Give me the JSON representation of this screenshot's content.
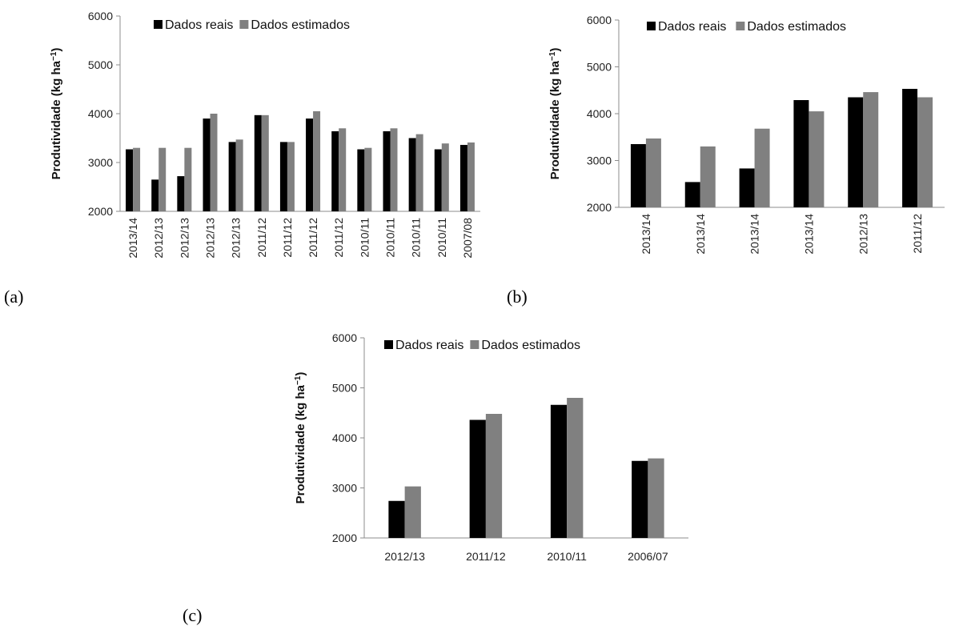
{
  "colors": {
    "real": "#000000",
    "estimated": "#808080",
    "axis": "#8c8c8c"
  },
  "chart_data": [
    {
      "type": "bar",
      "panel_label": "(a)",
      "ylabel": "Produtividade (kg ha",
      "ylabel_sup": "−1",
      "ylabel_close": ")",
      "ylim": [
        2000,
        6000
      ],
      "yticks": [
        2000,
        3000,
        4000,
        5000,
        6000
      ],
      "legend_position": "top-left",
      "grid": false,
      "categories": [
        "2013/14",
        "2012/13",
        "2012/13",
        "2012/13",
        "2012/13",
        "2011/12",
        "2011/12",
        "2011/12",
        "2011/12",
        "2010/11",
        "2010/11",
        "2010/11",
        "2010/11",
        "2007/08"
      ],
      "series": [
        {
          "name": "Dados reais",
          "values": [
            3270,
            2650,
            2720,
            3900,
            3420,
            3970,
            3420,
            3900,
            3640,
            3270,
            3640,
            3500,
            3270,
            3360
          ]
        },
        {
          "name": "Dados estimados",
          "values": [
            3300,
            3300,
            3300,
            4000,
            3470,
            3970,
            3420,
            4050,
            3700,
            3300,
            3700,
            3580,
            3390,
            3410
          ]
        }
      ]
    },
    {
      "type": "bar",
      "panel_label": "(b)",
      "ylabel": "Produtividade (kg ha",
      "ylabel_sup": "−1",
      "ylabel_close": ")",
      "ylim": [
        2000,
        6000
      ],
      "yticks": [
        2000,
        3000,
        4000,
        5000,
        6000
      ],
      "legend_position": "top-left",
      "grid": false,
      "categories": [
        "2013/14",
        "2013/14",
        "2013/14",
        "2013/14",
        "2012/13",
        "2011/12"
      ],
      "series": [
        {
          "name": "Dados reais",
          "values": [
            3350,
            2540,
            2830,
            4290,
            4350,
            4530
          ]
        },
        {
          "name": "Dados estimados",
          "values": [
            3470,
            3300,
            3680,
            4050,
            4460,
            4350
          ]
        }
      ]
    },
    {
      "type": "bar",
      "panel_label": "(c)",
      "ylabel": "Produtividade (kg ha",
      "ylabel_sup": "−1",
      "ylabel_close": ")",
      "ylim": [
        2000,
        6000
      ],
      "yticks": [
        2000,
        3000,
        4000,
        5000,
        6000
      ],
      "legend_position": "top-left",
      "grid": false,
      "categories": [
        "2012/13",
        "2011/12",
        "2010/11",
        "2006/07"
      ],
      "series": [
        {
          "name": "Dados reais",
          "values": [
            2740,
            4360,
            4660,
            3540
          ]
        },
        {
          "name": "Dados estimados",
          "values": [
            3030,
            4480,
            4800,
            3590
          ]
        }
      ]
    }
  ]
}
